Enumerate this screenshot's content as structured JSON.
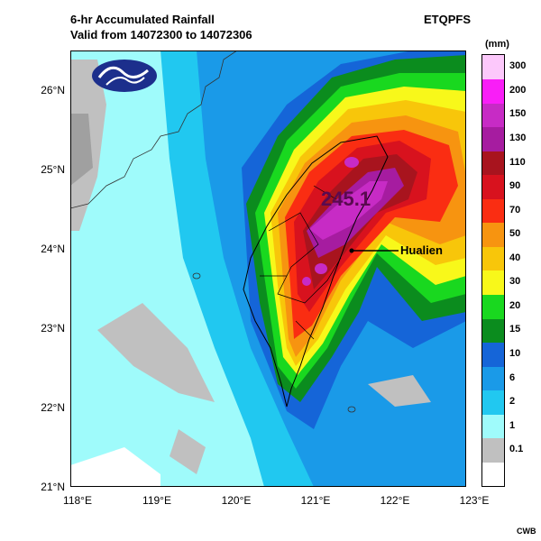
{
  "title_line1": "6-hr Accumulated Rainfall",
  "title_line2": "Valid from 14072300 to 14072306",
  "model": "ETQPFS",
  "unit": "(mm)",
  "credit": "CWB",
  "annotation_label": "Hualien",
  "max_value": "245.1",
  "lat_labels": [
    "26°N",
    "25°N",
    "24°N",
    "23°N",
    "22°N",
    "21°N"
  ],
  "lon_labels": [
    "118°E",
    "119°E",
    "120°E",
    "121°E",
    "122°E",
    "123°E"
  ],
  "legend": {
    "colors": [
      "#ffffff",
      "#c0c0c0",
      "#9ffbfb",
      "#21c8f0",
      "#1a9ae8",
      "#1565d8",
      "#0b8c1e",
      "#19d81f",
      "#f8f81a",
      "#f8c60a",
      "#f79410",
      "#fa2d12",
      "#d8121e",
      "#a8141e",
      "#a61ca0",
      "#c72bc5",
      "#f91ef7",
      "#fcc8fb"
    ],
    "labels": [
      "0.1",
      "1",
      "2",
      "6",
      "10",
      "15",
      "20",
      "30",
      "40",
      "50",
      "70",
      "90",
      "110",
      "130",
      "150",
      "200",
      "300"
    ]
  },
  "logo_icon": "cwb-logo-icon"
}
